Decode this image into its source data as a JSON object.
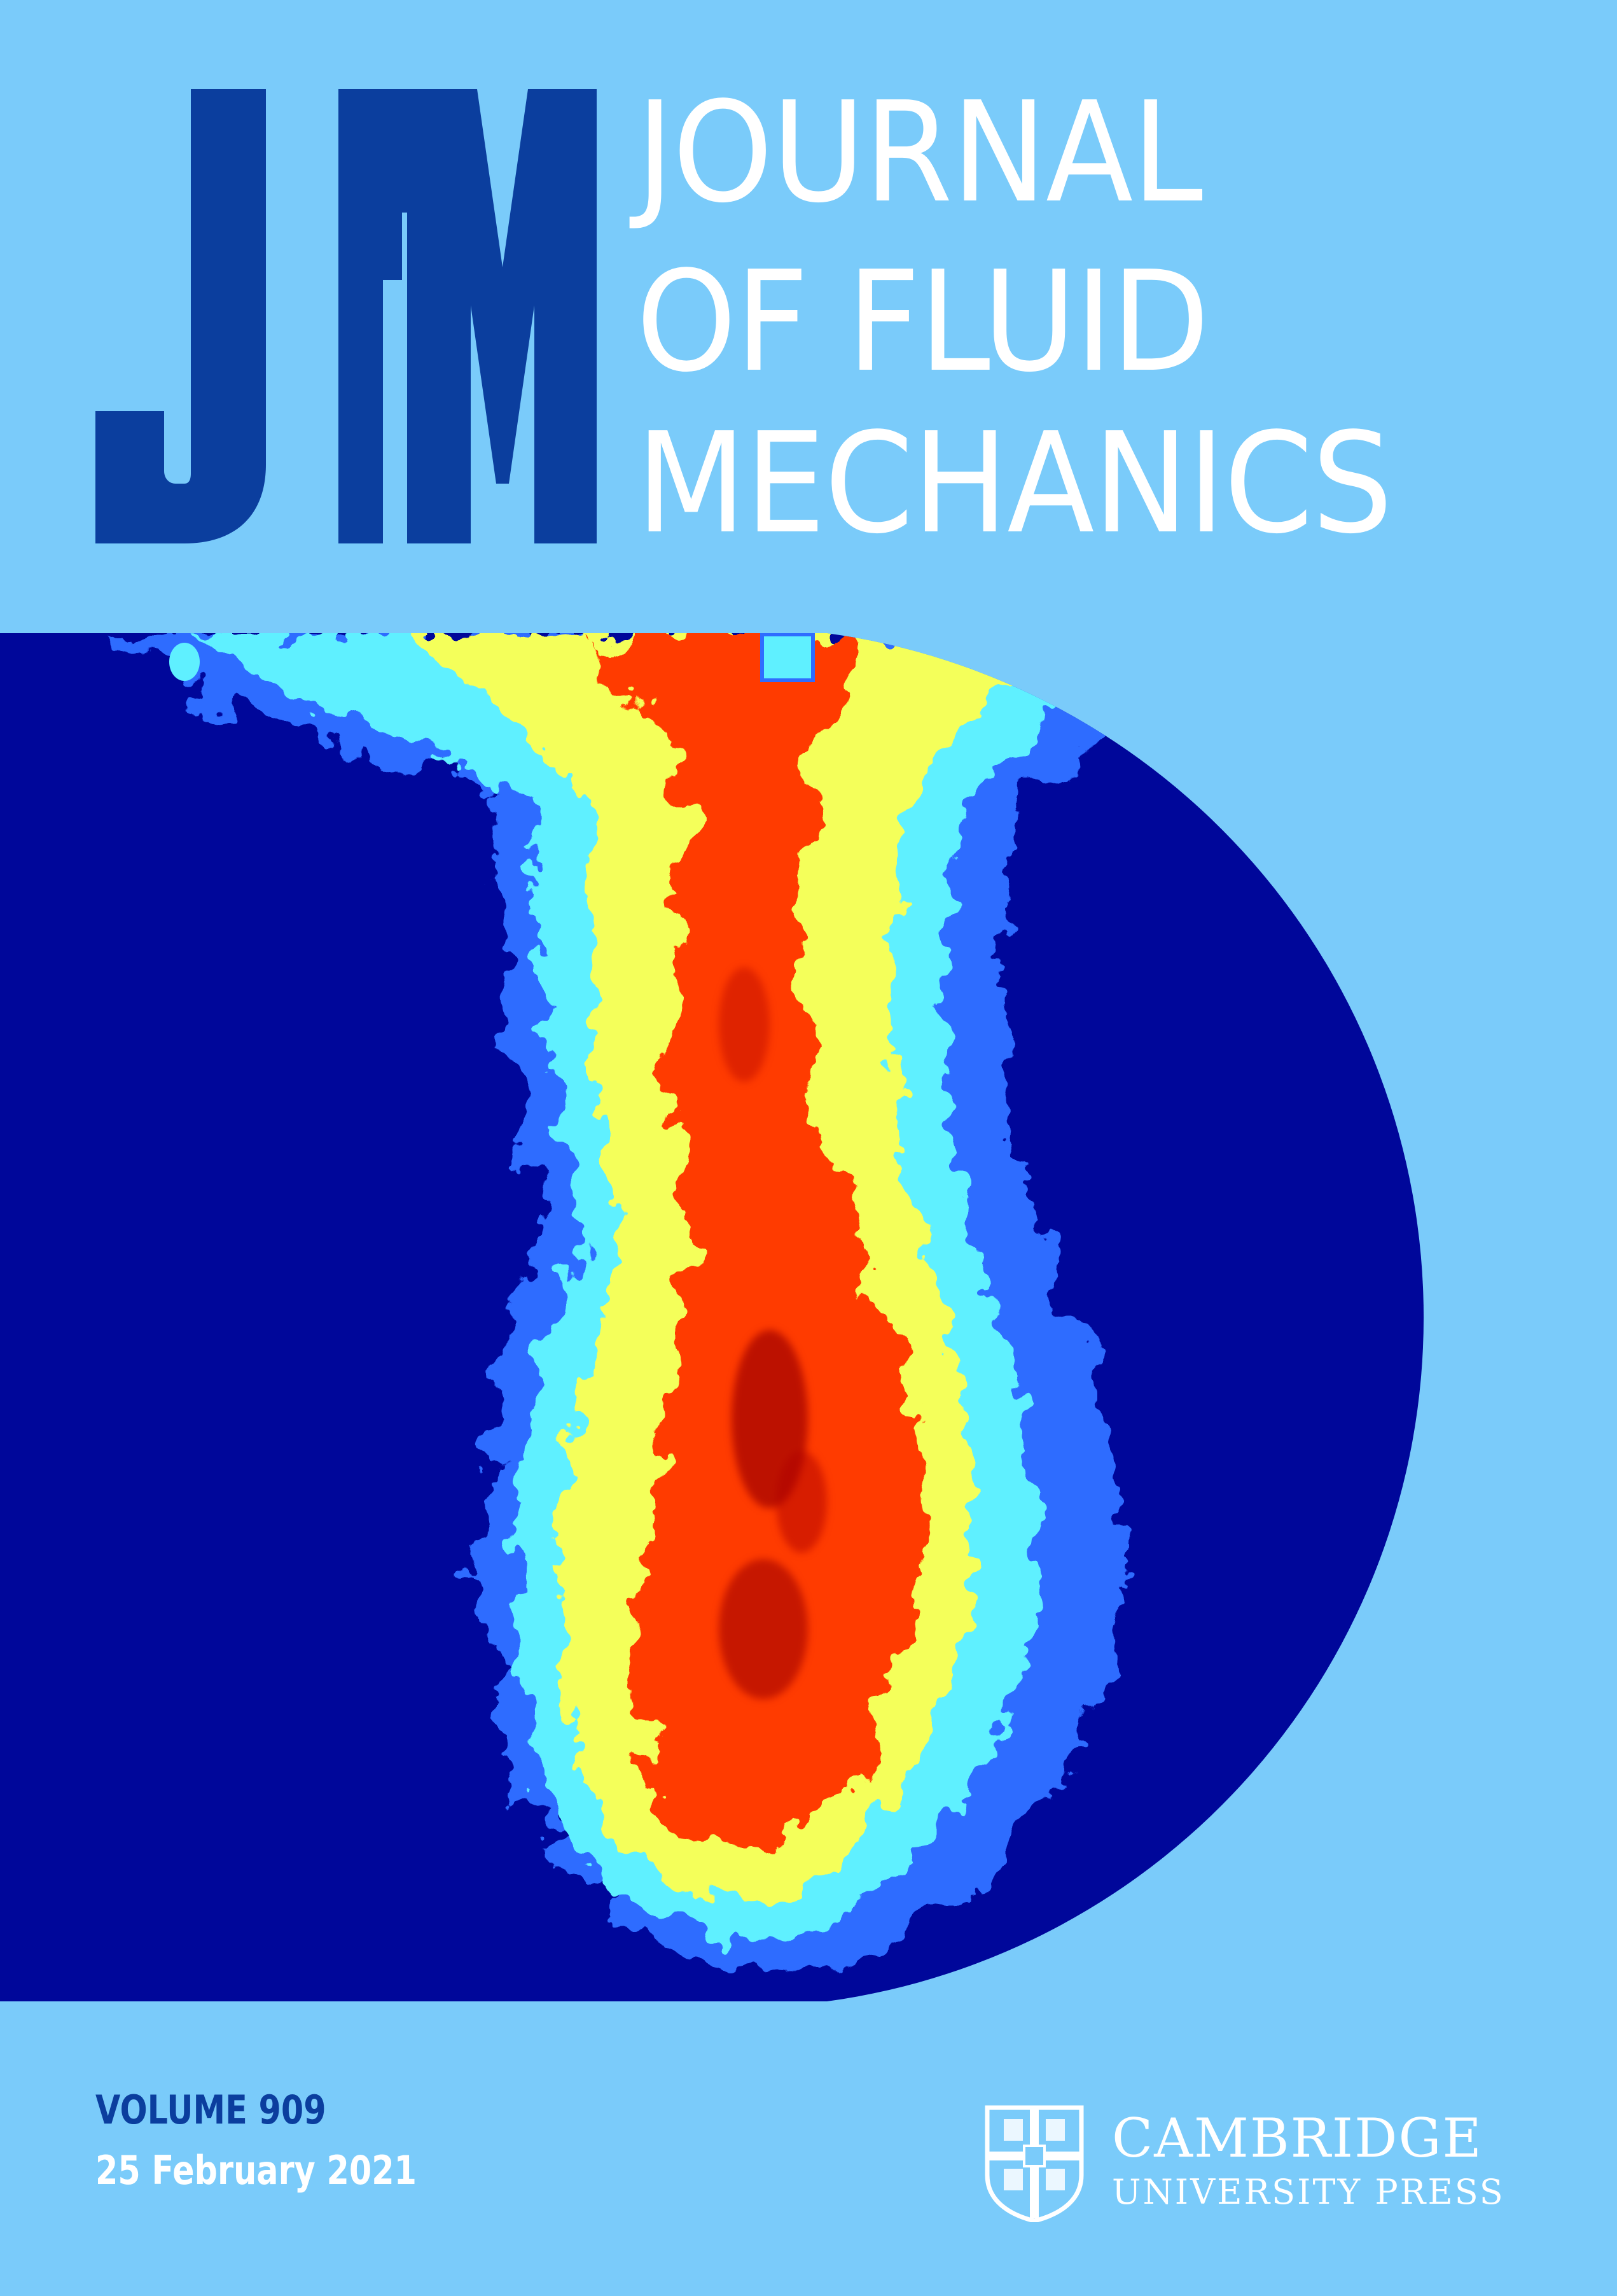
{
  "journal": {
    "logo_letters": "JFM",
    "title_lines": [
      "JOURNAL",
      "OF FLUID",
      "MECHANICS"
    ]
  },
  "issue": {
    "volume": "VOLUME 909",
    "date": "25 February 2021"
  },
  "publisher": {
    "name_line1": "CAMBRIDGE",
    "name_line2": "UNIVERSITY PRESS",
    "crest_icon": "university-crest-icon"
  },
  "colors": {
    "background": "#7acbfa",
    "logo_blue": "#0b3e9e",
    "panel_navy": "#00079a",
    "text_white": "#ffffff"
  },
  "cover_image": {
    "subject": "turbulent plume false-color concentration field",
    "colormap": [
      "#00079a",
      "#2f6cff",
      "#5ff0ff",
      "#f4ff5a",
      "#ff3a00",
      "#a00000"
    ]
  }
}
